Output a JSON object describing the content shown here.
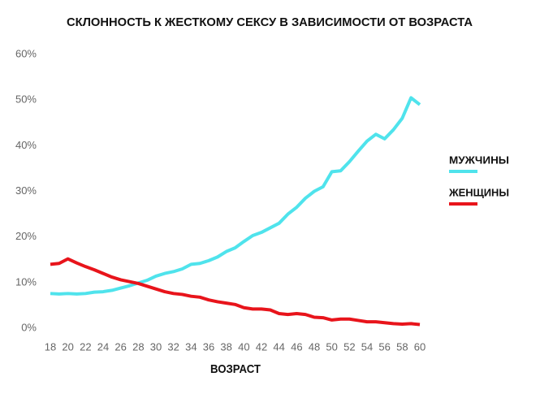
{
  "chart_data": {
    "type": "line",
    "title": "СКЛОННОСТЬ К ЖЕСТКОМУ СЕКСУ В ЗАВИСИМОСТИ ОТ ВОЗРАСТА",
    "x_label": "ВОЗРАСТ",
    "x": [
      18,
      19,
      20,
      21,
      22,
      23,
      24,
      25,
      26,
      27,
      28,
      29,
      30,
      31,
      32,
      33,
      34,
      35,
      36,
      37,
      38,
      39,
      40,
      41,
      42,
      43,
      44,
      45,
      46,
      47,
      48,
      49,
      50,
      51,
      52,
      53,
      54,
      55,
      56,
      57,
      58,
      59,
      60
    ],
    "series": [
      {
        "name": "МУЖЧИНЫ",
        "color": "#4fe3ec",
        "values": [
          7.6,
          7.5,
          7.6,
          7.5,
          7.6,
          7.9,
          8.0,
          8.3,
          8.8,
          9.3,
          9.9,
          10.5,
          11.4,
          12.0,
          12.4,
          13.0,
          14.0,
          14.2,
          14.8,
          15.6,
          16.8,
          17.6,
          19.0,
          20.3,
          21.0,
          22.0,
          23.0,
          25.0,
          26.5,
          28.5,
          30.0,
          31.0,
          34.3,
          34.5,
          36.5,
          38.8,
          41.0,
          42.5,
          41.5,
          43.5,
          46.0,
          50.5,
          49.0
        ]
      },
      {
        "name": "ЖЕНЩИНЫ",
        "color": "#e8141b",
        "values": [
          14.0,
          14.2,
          15.2,
          14.3,
          13.5,
          12.8,
          12.0,
          11.2,
          10.6,
          10.2,
          9.8,
          9.2,
          8.6,
          8.0,
          7.6,
          7.4,
          7.0,
          6.8,
          6.2,
          5.8,
          5.5,
          5.2,
          4.5,
          4.2,
          4.2,
          4.0,
          3.2,
          3.0,
          3.2,
          3.0,
          2.4,
          2.3,
          1.8,
          2.0,
          2.0,
          1.7,
          1.4,
          1.4,
          1.2,
          1.0,
          0.9,
          1.0,
          0.8
        ]
      }
    ],
    "xlim": [
      18,
      60
    ],
    "xticks": [
      18,
      20,
      22,
      24,
      26,
      28,
      30,
      32,
      34,
      36,
      38,
      40,
      42,
      44,
      46,
      48,
      50,
      52,
      54,
      56,
      58,
      60
    ],
    "ylim": [
      0,
      60
    ],
    "yticks": [
      {
        "value": 0,
        "label": "0%"
      },
      {
        "value": 10,
        "label": "10%"
      },
      {
        "value": 20,
        "label": "20%"
      },
      {
        "value": 30,
        "label": "30%"
      },
      {
        "value": 40,
        "label": "40%"
      },
      {
        "value": 50,
        "label": "50%"
      },
      {
        "value": 60,
        "label": "60%"
      }
    ],
    "grid": false
  }
}
